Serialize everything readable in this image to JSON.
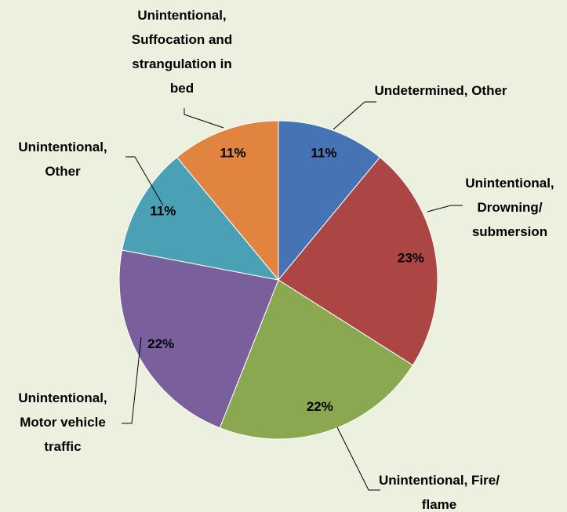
{
  "chart_data": {
    "type": "pie",
    "categories": [
      "Undetermined, Other",
      "Unintentional, Drowning/ submersion",
      "Unintentional, Fire/ flame",
      "Unintentional, Motor vehicle traffic",
      "Unintentional, Other",
      "Unintentional, Suffocation and strangulation in bed"
    ],
    "values": [
      11,
      23,
      22,
      22,
      11,
      11
    ],
    "value_labels": [
      "11%",
      "23%",
      "22%",
      "22%",
      "11%",
      "11%"
    ],
    "colors": [
      "#4673b3",
      "#ab4644",
      "#8aa850",
      "#7a5f9d",
      "#4aa0b5",
      "#e0843f"
    ]
  }
}
